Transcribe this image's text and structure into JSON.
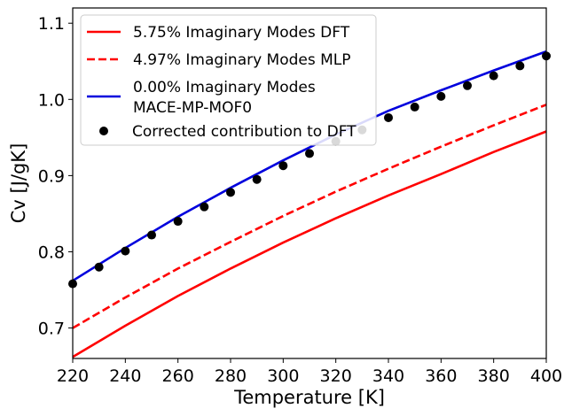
{
  "chart_data": {
    "type": "line",
    "title": "",
    "xlabel": "Temperature [K]",
    "ylabel": "Cv [J/gK]",
    "xlim": [
      220,
      400
    ],
    "ylim": [
      0.66,
      1.12
    ],
    "xticks": [
      220,
      240,
      260,
      280,
      300,
      320,
      340,
      360,
      380,
      400
    ],
    "yticks": [
      0.7,
      0.8,
      0.9,
      1.0,
      1.1
    ],
    "grid": false,
    "legend_position": "top-left",
    "series": [
      {
        "name": "5.75% Imaginary Modes DFT",
        "kind": "line",
        "style": "solid",
        "color": "#ff0000",
        "x": [
          220,
          240,
          260,
          280,
          300,
          320,
          340,
          360,
          380,
          400
        ],
        "y": [
          0.662,
          0.703,
          0.742,
          0.778,
          0.812,
          0.844,
          0.874,
          0.902,
          0.931,
          0.958
        ]
      },
      {
        "name": "4.97% Imaginary Modes MLP",
        "kind": "line",
        "style": "dashed",
        "color": "#ff0000",
        "x": [
          220,
          240,
          260,
          280,
          300,
          320,
          340,
          360,
          380,
          400
        ],
        "y": [
          0.7,
          0.74,
          0.778,
          0.813,
          0.847,
          0.879,
          0.909,
          0.938,
          0.966,
          0.993
        ]
      },
      {
        "name": "0.00% Imaginary Modes",
        "name_line2": "MACE-MP-MOF0",
        "kind": "line",
        "style": "solid",
        "color": "#0000dd",
        "x": [
          220,
          240,
          260,
          280,
          300,
          320,
          340,
          360,
          380,
          400
        ],
        "y": [
          0.762,
          0.805,
          0.846,
          0.884,
          0.92,
          0.954,
          0.985,
          1.012,
          1.038,
          1.063
        ]
      },
      {
        "name": "Corrected contribution to DFT",
        "kind": "scatter",
        "color": "#000000",
        "x": [
          220,
          230,
          240,
          250,
          260,
          270,
          280,
          290,
          300,
          310,
          320,
          330,
          340,
          350,
          360,
          370,
          380,
          390,
          400
        ],
        "y": [
          0.758,
          0.78,
          0.801,
          0.822,
          0.84,
          0.859,
          0.878,
          0.895,
          0.913,
          0.929,
          0.945,
          0.96,
          0.976,
          0.99,
          1.004,
          1.018,
          1.031,
          1.044,
          1.057
        ]
      }
    ]
  }
}
